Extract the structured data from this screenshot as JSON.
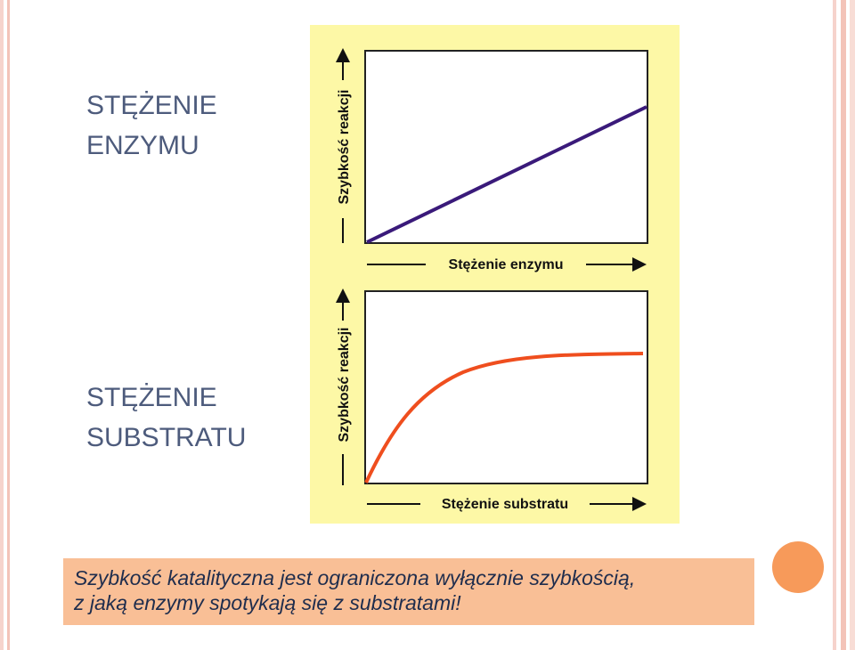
{
  "slide": {
    "labels": [
      "STĘŻENIE ENZYMU",
      "STĘŻENIE SUBSTRATU"
    ],
    "charts": [
      {
        "y_axis": "Szybkość reakcji",
        "x_axis": "Stężenie enzymu"
      },
      {
        "y_axis": "Szybkość reakcji",
        "x_axis": "Stężenie substratu"
      }
    ],
    "caption": [
      "Szybkość katalityczna jest ograniczona wyłącznie szybkością,",
      "z jaką enzymy spotykają się z substratami!"
    ]
  }
}
